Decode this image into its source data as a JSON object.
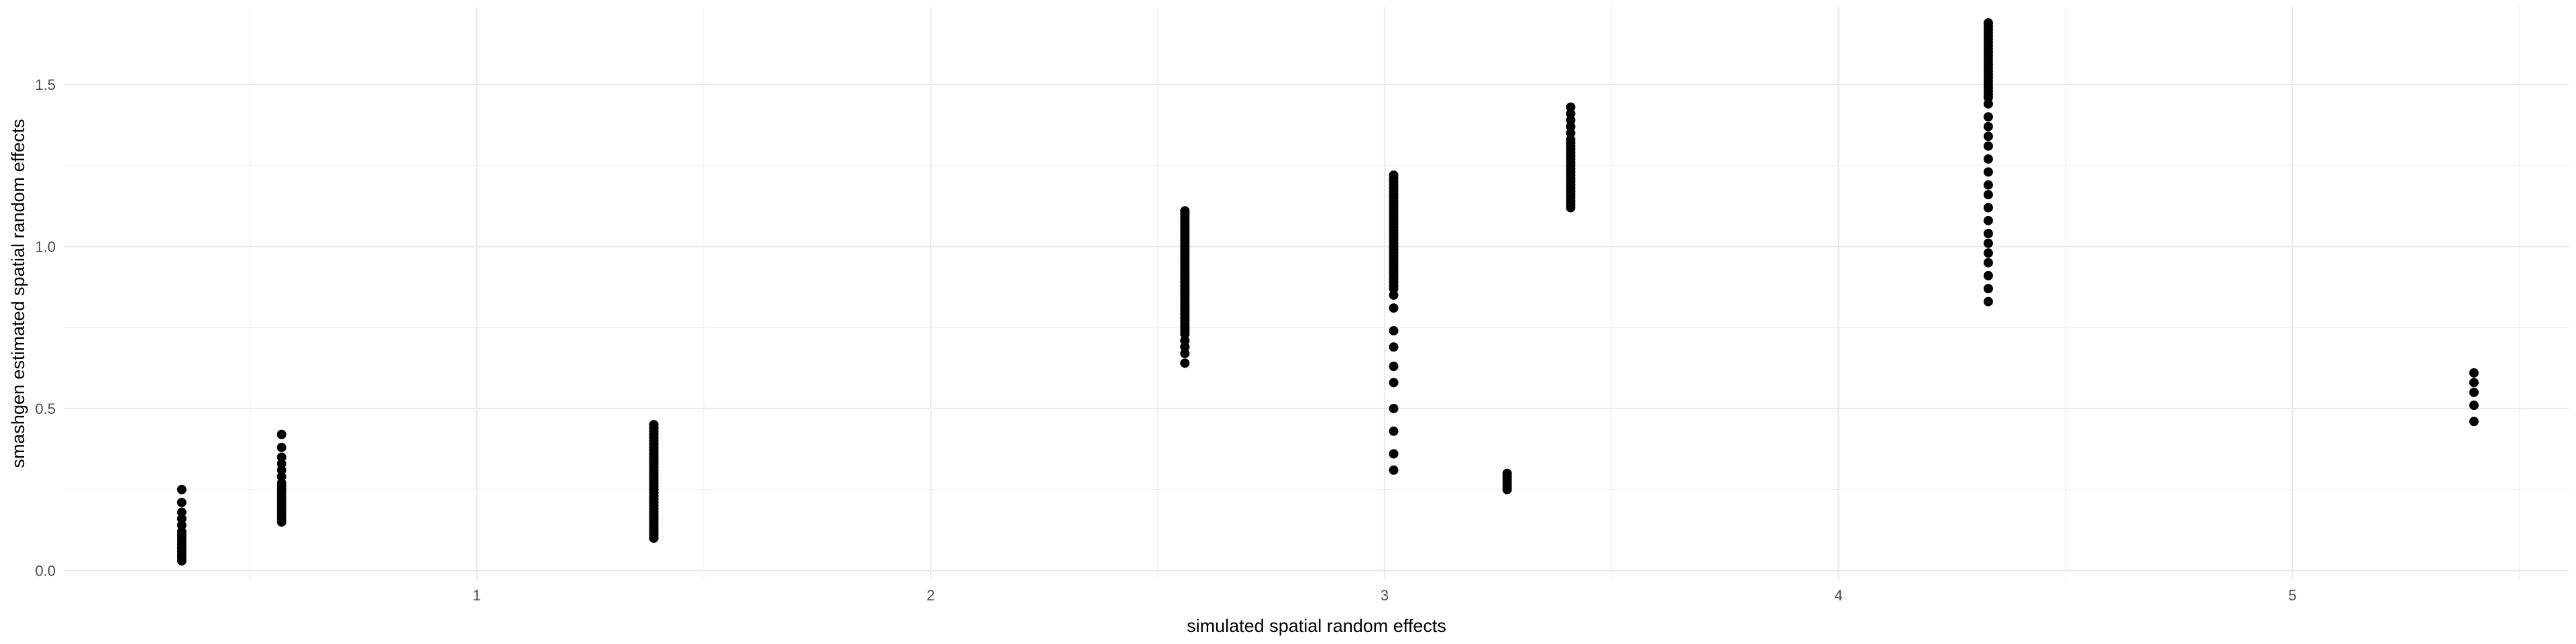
{
  "chart_data": {
    "type": "scatter",
    "title": "",
    "xlabel": "simulated spatial random effects",
    "ylabel": "smashgen estimated spatial random effects",
    "xlim": [
      0.09,
      5.61
    ],
    "ylim": [
      -0.03,
      1.74
    ],
    "x_ticks": [
      1,
      2,
      3,
      4,
      5
    ],
    "y_ticks": [
      0.0,
      0.5,
      1.0,
      1.5
    ],
    "x_tick_labels": [
      "1",
      "2",
      "3",
      "4",
      "5"
    ],
    "y_tick_labels": [
      "0.0",
      "0.5",
      "1.0",
      "1.5"
    ],
    "grid": true,
    "legend": "none",
    "point_color": "#000000",
    "groups": [
      {
        "x": 0.35,
        "y": [
          0.03,
          0.04,
          0.05,
          0.06,
          0.07,
          0.08,
          0.09,
          0.1,
          0.11,
          0.12,
          0.14,
          0.16,
          0.18,
          0.21,
          0.25
        ]
      },
      {
        "x": 0.57,
        "y": [
          0.15,
          0.16,
          0.17,
          0.18,
          0.19,
          0.2,
          0.21,
          0.22,
          0.23,
          0.24,
          0.25,
          0.26,
          0.27,
          0.29,
          0.31,
          0.33,
          0.35,
          0.38,
          0.42
        ]
      },
      {
        "x": 1.39,
        "y": [
          0.1,
          0.11,
          0.12,
          0.13,
          0.14,
          0.15,
          0.16,
          0.17,
          0.18,
          0.19,
          0.2,
          0.21,
          0.22,
          0.23,
          0.24,
          0.25,
          0.26,
          0.27,
          0.28,
          0.29,
          0.3,
          0.31,
          0.32,
          0.33,
          0.34,
          0.35,
          0.36,
          0.37,
          0.38,
          0.39,
          0.4,
          0.41,
          0.42,
          0.43,
          0.44,
          0.45
        ]
      },
      {
        "x": 2.56,
        "y": [
          0.64,
          0.67,
          0.69,
          0.71,
          0.73,
          0.74,
          0.75,
          0.76,
          0.77,
          0.78,
          0.79,
          0.8,
          0.81,
          0.82,
          0.83,
          0.84,
          0.85,
          0.86,
          0.87,
          0.88,
          0.89,
          0.9,
          0.91,
          0.92,
          0.93,
          0.94,
          0.95,
          0.96,
          0.97,
          0.98,
          0.99,
          1.0,
          1.01,
          1.02,
          1.03,
          1.04,
          1.05,
          1.06,
          1.07,
          1.08,
          1.09,
          1.1,
          1.11
        ]
      },
      {
        "x": 3.02,
        "y": [
          0.31,
          0.36,
          0.43,
          0.5,
          0.58,
          0.63,
          0.69,
          0.74,
          0.81,
          0.85,
          0.87,
          0.88,
          0.89,
          0.9,
          0.91,
          0.92,
          0.93,
          0.94,
          0.95,
          0.96,
          0.97,
          0.98,
          0.99,
          1.0,
          1.01,
          1.02,
          1.03,
          1.04,
          1.05,
          1.06,
          1.07,
          1.08,
          1.09,
          1.1,
          1.11,
          1.12,
          1.13,
          1.14,
          1.15,
          1.16,
          1.17,
          1.18,
          1.19,
          1.2,
          1.21,
          1.22
        ]
      },
      {
        "x": 3.27,
        "y": [
          0.25,
          0.26,
          0.27,
          0.28,
          0.29,
          0.3
        ]
      },
      {
        "x": 3.41,
        "y": [
          1.12,
          1.13,
          1.14,
          1.15,
          1.16,
          1.17,
          1.18,
          1.19,
          1.2,
          1.21,
          1.22,
          1.23,
          1.24,
          1.25,
          1.26,
          1.27,
          1.28,
          1.29,
          1.3,
          1.31,
          1.32,
          1.33,
          1.35,
          1.37,
          1.39,
          1.41,
          1.43
        ]
      },
      {
        "x": 4.33,
        "y": [
          0.83,
          0.87,
          0.91,
          0.95,
          0.98,
          1.01,
          1.04,
          1.08,
          1.12,
          1.16,
          1.19,
          1.23,
          1.27,
          1.31,
          1.34,
          1.37,
          1.4,
          1.44,
          1.46,
          1.47,
          1.48,
          1.49,
          1.5,
          1.51,
          1.52,
          1.53,
          1.54,
          1.55,
          1.56,
          1.57,
          1.58,
          1.59,
          1.6,
          1.61,
          1.62,
          1.63,
          1.64,
          1.65,
          1.66,
          1.67,
          1.68,
          1.69
        ]
      },
      {
        "x": 5.4,
        "y": [
          0.46,
          0.51,
          0.55,
          0.58,
          0.61
        ]
      }
    ]
  }
}
